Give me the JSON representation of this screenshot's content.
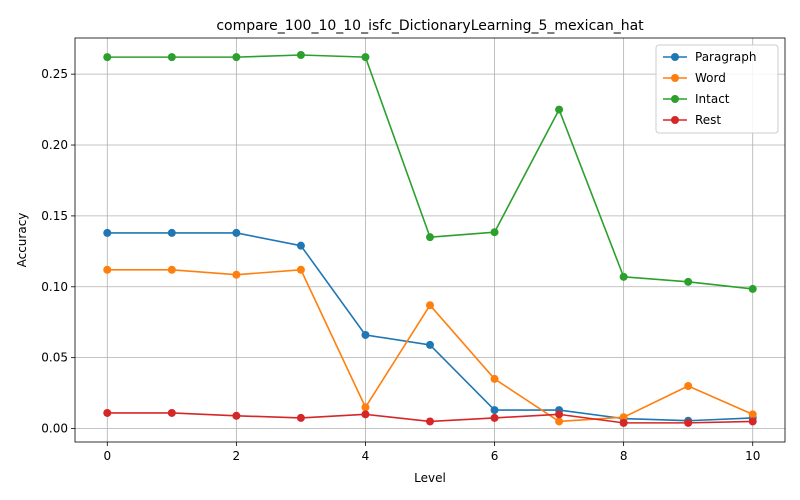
{
  "chart_data": {
    "type": "line",
    "title": "compare_100_10_10_isfc_DictionaryLearning_5_mexican_hat",
    "xlabel": "Level",
    "ylabel": "Accuracy",
    "x": [
      0,
      1,
      2,
      3,
      4,
      5,
      6,
      7,
      8,
      9,
      10
    ],
    "xlim": [
      -0.5,
      10.5
    ],
    "ylim": [
      -0.0095,
      0.2755
    ],
    "xticks": [
      0,
      2,
      4,
      6,
      8,
      10
    ],
    "yticks": [
      0.0,
      0.05,
      0.1,
      0.15,
      0.2,
      0.25
    ],
    "ytick_labels": [
      "0.00",
      "0.05",
      "0.10",
      "0.15",
      "0.20",
      "0.25"
    ],
    "grid": true,
    "legend_position": "top-right",
    "series": [
      {
        "name": "Paragraph",
        "color": "#1f77b4",
        "values": [
          0.138,
          0.138,
          0.138,
          0.129,
          0.066,
          0.059,
          0.013,
          0.013,
          0.007,
          0.0055,
          0.0075
        ]
      },
      {
        "name": "Word",
        "color": "#ff7f0e",
        "values": [
          0.112,
          0.112,
          0.1085,
          0.112,
          0.015,
          0.087,
          0.035,
          0.005,
          0.008,
          0.03,
          0.01
        ]
      },
      {
        "name": "Intact",
        "color": "#2ca02c",
        "values": [
          0.262,
          0.262,
          0.262,
          0.2635,
          0.262,
          0.135,
          0.1385,
          0.225,
          0.107,
          0.1035,
          0.0985
        ]
      },
      {
        "name": "Rest",
        "color": "#d62728",
        "values": [
          0.011,
          0.011,
          0.009,
          0.0075,
          0.01,
          0.005,
          0.0075,
          0.01,
          0.004,
          0.004,
          0.005
        ]
      }
    ]
  }
}
